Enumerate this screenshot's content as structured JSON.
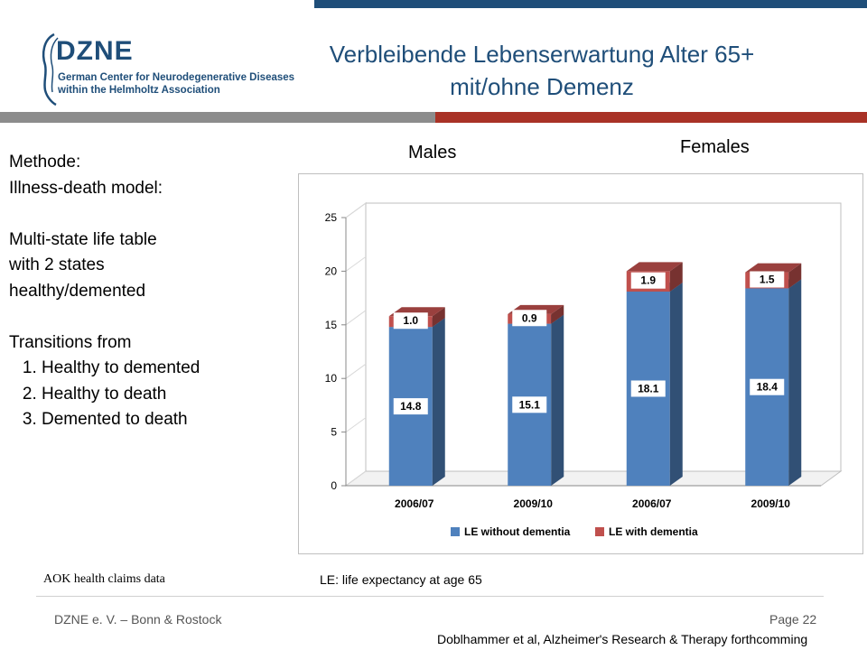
{
  "logo": {
    "acronym": "DZNE",
    "line1": "German Center for Neurodegenerative Diseases",
    "line2": "within the Helmholtz Association"
  },
  "title": {
    "line1": "Verbleibende Lebenserwartung Alter 65+",
    "line2": "mit/ohne Demenz"
  },
  "left_text": {
    "method": "Methode:",
    "model": "Illness-death model:",
    "table1": "Multi-state life table",
    "table2": "with 2 states",
    "table3": "healthy/demented",
    "transitions": "Transitions from",
    "items": [
      "Healthy to demented",
      "Healthy to death",
      "Demented to death"
    ]
  },
  "group_labels": {
    "males": "Males",
    "females": "Females"
  },
  "chart_data": {
    "type": "bar",
    "stacked": true,
    "categories": [
      "2006/07",
      "2009/10",
      "2006/07",
      "2009/10"
    ],
    "series": [
      {
        "name": "LE without dementia",
        "values": [
          14.8,
          15.1,
          18.1,
          18.4
        ],
        "color": "#4f81bd"
      },
      {
        "name": "LE with dementia",
        "values": [
          1.0,
          0.9,
          1.9,
          1.5
        ],
        "color": "#c0504d"
      }
    ],
    "value_labels": [
      [
        "14.8",
        "15.1",
        "18.1",
        "18.4"
      ],
      [
        "1.0",
        "0.9",
        "1.9",
        "1.5"
      ]
    ],
    "ylim": [
      0,
      25
    ],
    "yticks": [
      "0",
      "5",
      "10",
      "15",
      "20",
      "25"
    ],
    "legend_position": "bottom",
    "grid": false
  },
  "notes": {
    "source": "AOK health claims data",
    "le_definition": "LE: life expectancy at age 65"
  },
  "footer": {
    "left": "DZNE e. V. – Bonn & Rostock",
    "page": "Page 22",
    "citation": "Doblhammer et al, Alzheimer's Research & Therapy forthcomming"
  }
}
